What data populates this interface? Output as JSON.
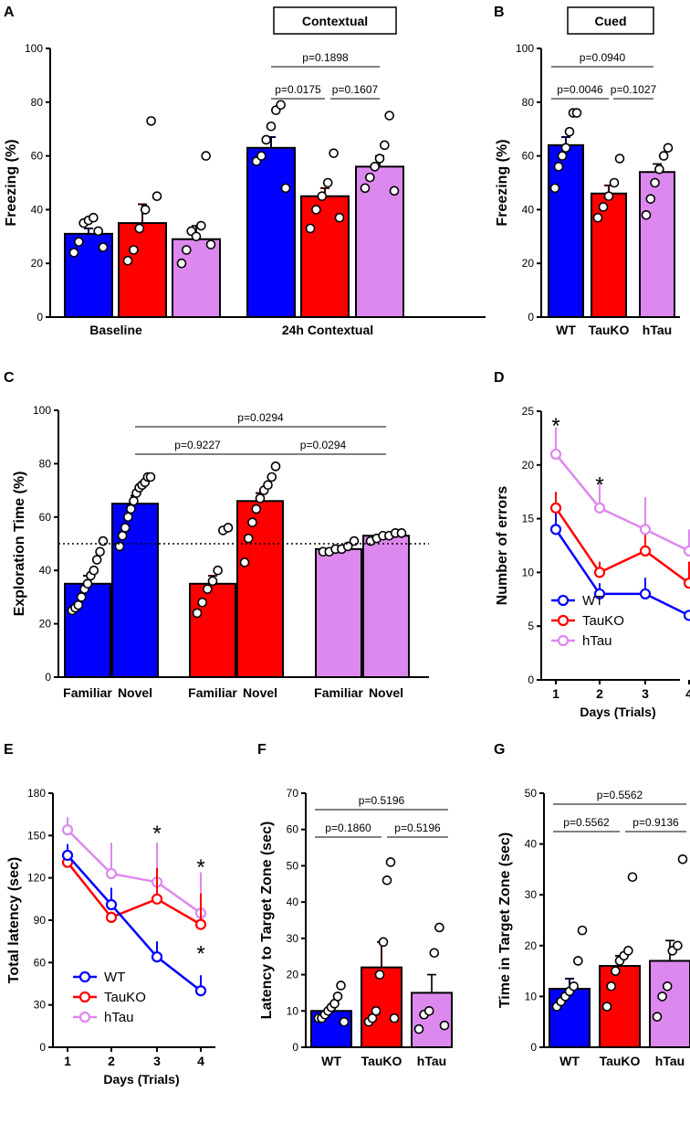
{
  "colors": {
    "WT": "#0000ff",
    "TauKO": "#ff0000",
    "hTau": "#dd88ee",
    "axis": "#000000"
  },
  "chart_data": [
    {
      "panel": "A",
      "type": "bar",
      "title": "Contextual",
      "ylabel": "Freezing (%)",
      "ylim": [
        0,
        100
      ],
      "yticks": [
        "0",
        "20",
        "40",
        "60",
        "80",
        "100"
      ],
      "groups": [
        "Baseline",
        "24h Contextual"
      ],
      "series": [
        {
          "name": "WT",
          "values": [
            31,
            63
          ],
          "errors": [
            2,
            4
          ],
          "points": [
            [
              24,
              28,
              35,
              36,
              37,
              32,
              26
            ],
            [
              58,
              60,
              66,
              71,
              77,
              79,
              48
            ]
          ]
        },
        {
          "name": "TauKO",
          "values": [
            35,
            45
          ],
          "errors": [
            7,
            3
          ],
          "points": [
            [
              21,
              25,
              33,
              40,
              73,
              45
            ],
            [
              33,
              40,
              45,
              50,
              61,
              37
            ]
          ]
        },
        {
          "name": "hTau",
          "values": [
            29,
            56
          ],
          "errors": [
            5,
            4
          ],
          "points": [
            [
              20,
              25,
              32,
              30,
              34,
              60,
              27
            ],
            [
              48,
              52,
              56,
              59,
              64,
              75,
              47
            ]
          ]
        }
      ],
      "comparisons": [
        "p=0.1898",
        "p=0.0175",
        "p=0.1607"
      ]
    },
    {
      "panel": "B",
      "type": "bar",
      "title": "Cued",
      "ylabel": "Freezing (%)",
      "ylim": [
        0,
        100
      ],
      "yticks": [
        "0",
        "20",
        "40",
        "60",
        "80",
        "100"
      ],
      "categories": [
        "WT",
        "TauKO",
        "hTau"
      ],
      "values": [
        64,
        46,
        54
      ],
      "errors": [
        3,
        3,
        3
      ],
      "points": [
        [
          48,
          56,
          60,
          63,
          69,
          76,
          76
        ],
        [
          37,
          41,
          45,
          50,
          59
        ],
        [
          38,
          44,
          50,
          55,
          60,
          63
        ]
      ],
      "comparisons": [
        "p=0.0940",
        "p=0.0046",
        "p=0.1027"
      ]
    },
    {
      "panel": "C",
      "type": "bar",
      "ylabel": "Exploration Time (%)",
      "ylim": [
        0,
        100
      ],
      "yticks": [
        "0",
        "20",
        "40",
        "60",
        "80",
        "100"
      ],
      "categories": [
        "Familiar",
        "Novel",
        "Familiar",
        "Novel",
        "Familiar",
        "Novel"
      ],
      "series_colors": [
        "WT",
        "WT",
        "TauKO",
        "TauKO",
        "hTau",
        "hTau"
      ],
      "values": [
        35,
        65,
        35,
        66,
        48,
        53
      ],
      "errors": [
        3,
        3,
        3,
        3,
        1,
        1
      ],
      "chance_level": 50,
      "points": [
        [
          25,
          26,
          27,
          30,
          33,
          35,
          38,
          40,
          44,
          47,
          51
        ],
        [
          49,
          53,
          56,
          60,
          63,
          66,
          69,
          71,
          72,
          73,
          75,
          75
        ],
        [
          24,
          28,
          33,
          36,
          40,
          55,
          56
        ],
        [
          43,
          52,
          58,
          63,
          67,
          70,
          72,
          75,
          79
        ],
        [
          47,
          47,
          48,
          48,
          49,
          51
        ],
        [
          51,
          52,
          53,
          53,
          54,
          54
        ]
      ],
      "comparisons": [
        "p=0.0294",
        "p=0.9227",
        "p=0.0294"
      ]
    },
    {
      "panel": "D",
      "type": "line",
      "ylabel": "Number of errors",
      "xlabel": "Days (Trials)",
      "ylim": [
        0,
        25
      ],
      "yticks": [
        "0",
        "5",
        "10",
        "15",
        "20",
        "25"
      ],
      "x": [
        1,
        2,
        3,
        4
      ],
      "xticks": [
        "1",
        "2",
        "3",
        "4"
      ],
      "series": [
        {
          "name": "WT",
          "values": [
            14,
            8,
            8,
            6
          ],
          "errors": [
            1.5,
            1,
            1.5,
            0
          ]
        },
        {
          "name": "TauKO",
          "values": [
            16,
            10,
            12,
            9
          ],
          "errors": [
            1.5,
            1,
            1.5,
            2
          ]
        },
        {
          "name": "hTau",
          "values": [
            21,
            16,
            14,
            12
          ],
          "errors": [
            2.5,
            2.5,
            3,
            2
          ]
        }
      ],
      "annotations": [
        {
          "x": 1,
          "y": 24,
          "text": "*"
        },
        {
          "x": 2,
          "y": 18.5,
          "text": "*"
        }
      ]
    },
    {
      "panel": "E",
      "type": "line",
      "ylabel": "Total latency (sec)",
      "xlabel": "Days (Trials)",
      "ylim": [
        0,
        180
      ],
      "yticks": [
        "0",
        "30",
        "60",
        "90",
        "120",
        "150",
        "180"
      ],
      "x": [
        1,
        2,
        3,
        4
      ],
      "xticks": [
        "1",
        "2",
        "3",
        "4"
      ],
      "series": [
        {
          "name": "WT",
          "values": [
            136,
            101,
            64,
            40
          ],
          "errors": [
            8,
            12,
            11,
            11
          ]
        },
        {
          "name": "TauKO",
          "values": [
            131,
            92,
            105,
            87
          ],
          "errors": [
            4,
            4,
            22,
            22
          ]
        },
        {
          "name": "hTau",
          "values": [
            154,
            123,
            117,
            95
          ],
          "errors": [
            9,
            22,
            28,
            29
          ]
        }
      ],
      "annotations": [
        {
          "x": 3,
          "y": 154,
          "text": "*"
        },
        {
          "x": 4,
          "y": 130,
          "text": "*"
        },
        {
          "x": 4,
          "y": 69,
          "text": "*"
        }
      ]
    },
    {
      "panel": "F",
      "type": "bar",
      "ylabel": "Latency to Target  Zone (sec)",
      "ylim": [
        0,
        70
      ],
      "yticks": [
        "0",
        "10",
        "20",
        "30",
        "40",
        "50",
        "60",
        "70"
      ],
      "categories": [
        "WT",
        "TauKO",
        "hTau"
      ],
      "values": [
        10,
        22,
        15
      ],
      "errors": [
        1,
        7,
        5
      ],
      "points": [
        [
          8,
          8,
          9,
          10,
          11,
          12,
          14,
          17,
          7
        ],
        [
          7,
          8,
          10,
          20,
          29,
          46,
          51,
          8
        ],
        [
          5,
          9,
          10,
          26,
          33,
          6
        ]
      ],
      "comparisons": [
        "p=0.5196",
        "p=0.1860",
        "p=0.5196"
      ]
    },
    {
      "panel": "G",
      "type": "bar",
      "ylabel": "Time in Target Zone (sec)",
      "ylim": [
        0,
        50
      ],
      "yticks": [
        "0",
        "10",
        "20",
        "30",
        "40",
        "50"
      ],
      "categories": [
        "WT",
        "TauKO",
        "hTau"
      ],
      "values": [
        11.5,
        16,
        17
      ],
      "errors": [
        2,
        2,
        4
      ],
      "points": [
        [
          8,
          9,
          10,
          11,
          12,
          17,
          23
        ],
        [
          8,
          12,
          15,
          17,
          18,
          19,
          33.5
        ],
        [
          6,
          10,
          12,
          19,
          20,
          37
        ]
      ],
      "comparisons": [
        "p=0.5562",
        "p=0.5562",
        "p=0.9136"
      ]
    }
  ],
  "labels": {
    "A": "A",
    "B": "B",
    "C": "C",
    "D": "D",
    "E": "E",
    "F": "F",
    "G": "G",
    "legend": [
      "WT",
      "TauKO",
      "hTau"
    ]
  }
}
